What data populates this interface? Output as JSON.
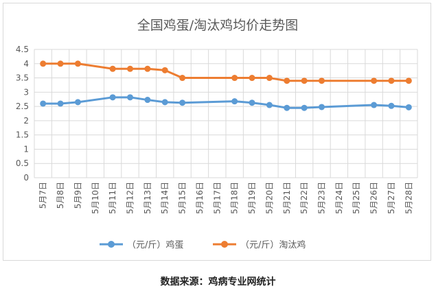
{
  "chart_data": {
    "type": "line",
    "title": "全国鸡蛋/淘汰鸡均价走势图",
    "xlabel": "",
    "ylabel": "",
    "ylim": [
      0,
      4.5
    ],
    "yticks": [
      "0",
      "0.5",
      "1",
      "1.5",
      "2",
      "2.5",
      "3",
      "3.5",
      "4",
      "4.5"
    ],
    "categories": [
      "5月7日",
      "5月8日",
      "5月9日",
      "5月10日",
      "5月11日",
      "5月12日",
      "5月13日",
      "5月14日",
      "5月15日",
      "5月16日",
      "5月17日",
      "5月18日",
      "5月19日",
      "5月20日",
      "5月21日",
      "5月22日",
      "5月23日",
      "5月24日",
      "5月25日",
      "5月26日",
      "5月27日",
      "5月28日"
    ],
    "grid": true,
    "legend_position": "bottom",
    "series": [
      {
        "name": "（元/斤）鸡蛋",
        "color": "#5b9bd5",
        "values": [
          2.6,
          2.6,
          2.65,
          null,
          2.82,
          2.82,
          2.73,
          2.65,
          2.63,
          null,
          null,
          2.68,
          2.63,
          2.55,
          2.45,
          2.45,
          2.48,
          null,
          null,
          2.55,
          2.52,
          2.47
        ]
      },
      {
        "name": "（元/斤）淘汰鸡",
        "color": "#ed7d31",
        "values": [
          4.0,
          4.0,
          4.0,
          null,
          3.82,
          3.82,
          3.82,
          3.77,
          3.5,
          null,
          null,
          3.5,
          3.5,
          3.5,
          3.4,
          3.4,
          3.4,
          null,
          null,
          3.4,
          3.4,
          3.4
        ]
      }
    ]
  },
  "footer": {
    "source": "数据来源：鸡病专业网统计"
  },
  "colors": {
    "axis": "#d9d9d9",
    "grid": "#d9d9d9",
    "text": "#595959"
  }
}
